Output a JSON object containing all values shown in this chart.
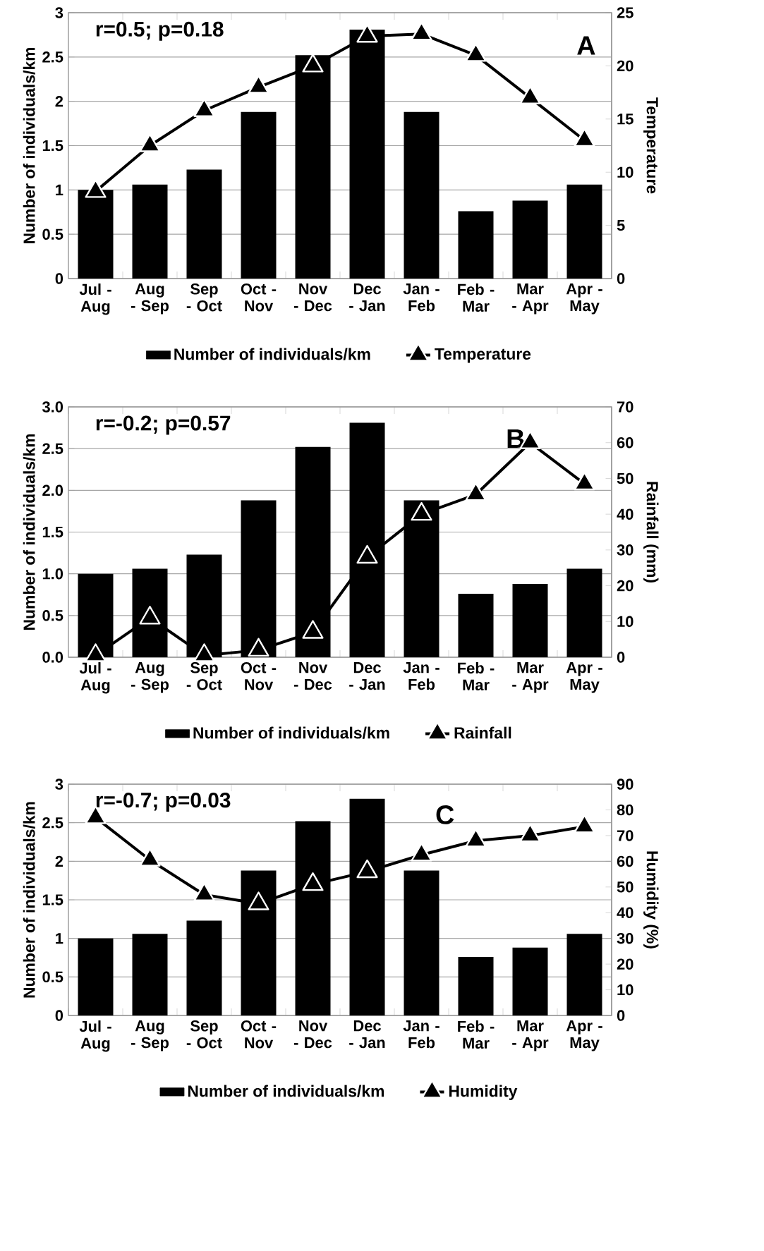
{
  "chart_data": [
    {
      "type": "bar",
      "categories": [
        "Jul - Aug",
        "Aug - Sep",
        "Sep - Oct",
        "Oct - Nov",
        "Nov - Dec",
        "Dec - Jan",
        "Jan - Feb",
        "Feb - Mar",
        "Mar - Apr",
        "Apr - May"
      ],
      "series": [
        {
          "name": "Number of individuals/km",
          "color": "#000000",
          "values": [
            1.0,
            1.06,
            1.23,
            1.88,
            2.52,
            2.81,
            1.88,
            0.76,
            0.88,
            1.06
          ]
        },
        {
          "name": "Temperature",
          "type": "line",
          "axis": "y2",
          "color": "#000000",
          "values": [
            8.2,
            12.5,
            15.8,
            18.0,
            20.0,
            22.8,
            23.0,
            21.0,
            17.0,
            13.0
          ]
        }
      ],
      "ylabel": "Number of individuals/km",
      "y2label": "Temperature",
      "ylim": [
        0,
        3
      ],
      "yticks": [
        0,
        0.5,
        1,
        1.5,
        2,
        2.5,
        3
      ],
      "y2lim": [
        0,
        25
      ],
      "y2ticks": [
        0,
        5,
        10,
        15,
        20,
        25
      ],
      "annotations": [
        "r=0.5; p=0.18",
        "A"
      ],
      "grid": "y",
      "legend": "bottom",
      "marker": "triangle"
    },
    {
      "type": "bar",
      "categories": [
        "Jul - Aug",
        "Aug - Sep",
        "Sep - Oct",
        "Oct - Nov",
        "Nov - Dec",
        "Dec - Jan",
        "Jan - Feb",
        "Feb - Mar",
        "Mar - Apr",
        "Apr - May"
      ],
      "series": [
        {
          "name": "Number of individuals/km",
          "color": "#000000",
          "values": [
            1.0,
            1.06,
            1.23,
            1.88,
            2.52,
            2.81,
            1.88,
            0.76,
            0.88,
            1.06
          ]
        },
        {
          "name": "Rainfall",
          "type": "line",
          "axis": "y2",
          "color": "#000000",
          "values": [
            0.5,
            11.0,
            0.5,
            2.0,
            7.0,
            28.0,
            40.0,
            45.5,
            60.0,
            48.5
          ]
        }
      ],
      "ylabel": "Number of individuals/km",
      "y2label": "Rainfall (mm)",
      "ylim": [
        0,
        3
      ],
      "yticks": [
        {
          "value": 0,
          "label": "0.0"
        },
        {
          "value": 0.5,
          "label": "0.5"
        },
        {
          "value": 1,
          "label": "1.0"
        },
        {
          "value": 1.5,
          "label": "1.5"
        },
        {
          "value": 2,
          "label": "2.0"
        },
        {
          "value": 2.5,
          "label": "2.5"
        },
        {
          "value": 3,
          "label": "3.0"
        }
      ],
      "y2lim": [
        0,
        70
      ],
      "y2ticks": [
        0,
        10,
        20,
        30,
        40,
        50,
        60,
        70
      ],
      "annotations": [
        "r=-0.2; p=0.57",
        "B"
      ],
      "grid": "y",
      "legend": "bottom",
      "marker": "triangle"
    },
    {
      "type": "bar",
      "categories": [
        "Jul - Aug",
        "Aug - Sep",
        "Sep - Oct",
        "Oct - Nov",
        "Nov - Dec",
        "Dec - Jan",
        "Jan - Feb",
        "Feb - Mar",
        "Mar - Apr",
        "Apr - May"
      ],
      "series": [
        {
          "name": "Number of individuals/km",
          "color": "#000000",
          "values": [
            1.0,
            1.06,
            1.23,
            1.88,
            2.52,
            2.81,
            1.88,
            0.76,
            0.88,
            1.06
          ]
        },
        {
          "name": "Humidity",
          "type": "line",
          "axis": "y2",
          "color": "#000000",
          "values": [
            77.0,
            60.5,
            47.0,
            43.5,
            51.0,
            56.0,
            62.5,
            68.0,
            70.0,
            73.5
          ]
        }
      ],
      "ylabel": "Number of individuals/km",
      "y2label": "Humidity (%)",
      "ylim": [
        0,
        3
      ],
      "yticks": [
        0,
        0.5,
        1,
        1.5,
        2,
        2.5,
        3
      ],
      "y2lim": [
        0,
        90
      ],
      "y2ticks": [
        0,
        10,
        20,
        30,
        40,
        50,
        60,
        70,
        80,
        90
      ],
      "annotations": [
        "r=-0.7; p=0.03",
        "C"
      ],
      "grid": "y",
      "legend": "bottom",
      "marker": "triangle"
    }
  ]
}
